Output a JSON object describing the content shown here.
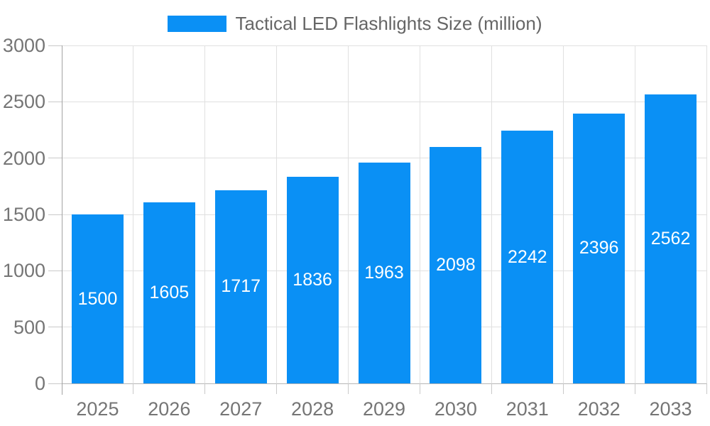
{
  "legend": {
    "label": "Tactical LED Flashlights Size (million)"
  },
  "colors": {
    "bar": "#0a90f5",
    "grid": "#e0e0e0",
    "axis_line": "#a3a3a3",
    "baseline": "#b5b5b5",
    "tick_mark": "#c9c9c9",
    "tick_label": "#757575",
    "legend_text": "#666666",
    "value_label": "#ffffff",
    "background": "#ffffff"
  },
  "chart_data": {
    "type": "bar",
    "title": "Tactical LED Flashlights Size (million)",
    "series_name": "Tactical LED Flashlights Size (million)",
    "categories": [
      "2025",
      "2026",
      "2027",
      "2028",
      "2029",
      "2030",
      "2031",
      "2032",
      "2033"
    ],
    "values": [
      1500,
      1605,
      1717,
      1836,
      1963,
      2098,
      2242,
      2396,
      2562
    ],
    "xlabel": "",
    "ylabel": "",
    "ylim": [
      0,
      3000
    ],
    "yticks": [
      0,
      500,
      1000,
      1500,
      2000,
      2500,
      3000
    ],
    "grid": true,
    "legend_position": "top-center",
    "value_label_position": "inside-center"
  }
}
